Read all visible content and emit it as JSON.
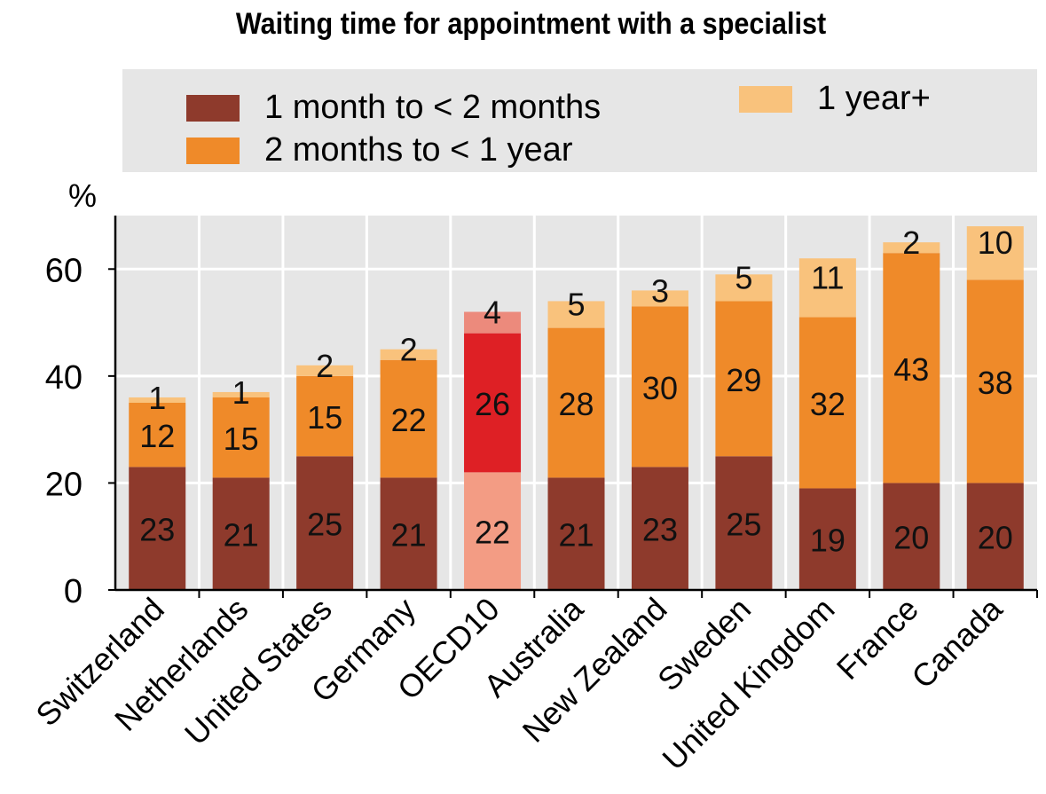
{
  "chart_data": {
    "type": "bar",
    "stacked": true,
    "title": "Waiting time for appointment with a specialist",
    "ylabel": "%",
    "xlabel": "",
    "ylim": [
      0,
      70
    ],
    "yticks": [
      0,
      20,
      40,
      60
    ],
    "grid": true,
    "legend_position": "top",
    "categories": [
      "Switzerland",
      "Netherlands",
      "United States",
      "Germany",
      "OECD10",
      "Australia",
      "New Zealand",
      "Sweden",
      "United Kingdom",
      "France",
      "Canada"
    ],
    "series": [
      {
        "name": "1 month to < 2 months",
        "color": "#8e3a2c",
        "values": [
          23,
          21,
          25,
          21,
          22,
          21,
          23,
          25,
          19,
          20,
          20
        ]
      },
      {
        "name": "2 months to < 1 year",
        "color": "#ef8a29",
        "values": [
          12,
          15,
          15,
          22,
          26,
          28,
          30,
          29,
          32,
          43,
          38
        ]
      },
      {
        "name": "1 year+",
        "color": "#f9c27c",
        "values": [
          1,
          1,
          2,
          2,
          4,
          5,
          3,
          5,
          11,
          2,
          10
        ]
      }
    ],
    "highlight": {
      "category": "OECD10",
      "colors": [
        "#f39c84",
        "#de2025",
        "#ec8a7c"
      ]
    }
  }
}
